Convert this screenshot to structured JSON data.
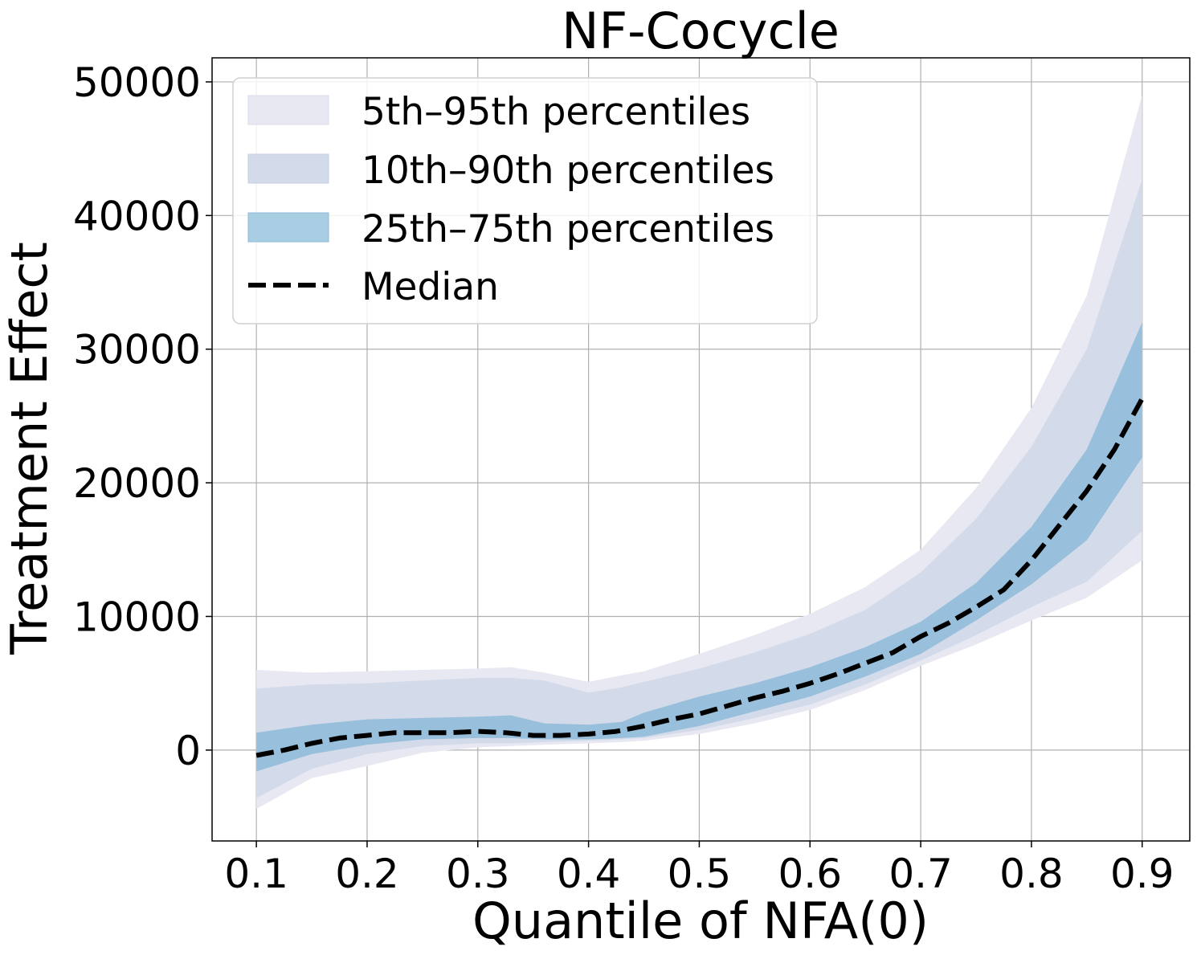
{
  "chart_data": {
    "type": "area",
    "title": "NF-Cocycle",
    "xlabel": "Quantile of NFA(0)",
    "ylabel": "Treatment Effect",
    "xlim": [
      0.06,
      0.943
    ],
    "ylim": [
      -6800,
      51800
    ],
    "xticks": [
      0.1,
      0.2,
      0.3,
      0.4,
      0.5,
      0.6,
      0.7,
      0.8,
      0.9
    ],
    "xtick_labels": [
      "0.1",
      "0.2",
      "0.3",
      "0.4",
      "0.5",
      "0.6",
      "0.7",
      "0.8",
      "0.9"
    ],
    "yticks": [
      0,
      10000,
      20000,
      30000,
      40000,
      50000
    ],
    "ytick_labels": [
      "0",
      "10000",
      "20000",
      "30000",
      "40000",
      "50000"
    ],
    "grid": true,
    "legend_position": "top-left",
    "x": [
      0.1,
      0.15,
      0.2,
      0.25,
      0.3,
      0.33,
      0.36,
      0.4,
      0.43,
      0.45,
      0.5,
      0.55,
      0.6,
      0.65,
      0.7,
      0.75,
      0.8,
      0.85,
      0.9
    ],
    "series": [
      {
        "name": "5th–95th percentiles",
        "color": "#e8e8f2",
        "lower": [
          -4400,
          -2100,
          -1200,
          -200,
          200,
          300,
          400,
          500,
          600,
          700,
          1200,
          2000,
          3000,
          4500,
          6300,
          7900,
          9700,
          11400,
          14200
        ],
        "upper": [
          6000,
          5800,
          5900,
          6000,
          6100,
          6200,
          5800,
          5100,
          5600,
          5900,
          7200,
          8600,
          10200,
          12200,
          15000,
          19600,
          25600,
          34000,
          49000
        ]
      },
      {
        "name": "10th–90th percentiles",
        "color": "#d3dbea",
        "lower": [
          -3600,
          -1400,
          -300,
          300,
          500,
          500,
          600,
          700,
          800,
          900,
          1500,
          2400,
          3400,
          4900,
          6700,
          8600,
          10700,
          12600,
          16400
        ],
        "upper": [
          4600,
          4900,
          5000,
          5200,
          5400,
          5400,
          5200,
          4300,
          4700,
          5100,
          6100,
          7300,
          8700,
          10500,
          13300,
          17300,
          22700,
          30000,
          42700
        ]
      },
      {
        "name": "25th–75th percentiles",
        "color": "#8dbad8",
        "lower": [
          -1600,
          -300,
          400,
          800,
          900,
          900,
          800,
          800,
          900,
          1000,
          1800,
          2900,
          4000,
          5500,
          7200,
          9700,
          12400,
          15700,
          21900
        ],
        "upper": [
          1300,
          1900,
          2300,
          2400,
          2500,
          2600,
          2000,
          1900,
          2100,
          2800,
          4000,
          5000,
          6200,
          7700,
          9600,
          12500,
          16700,
          22500,
          32000
        ]
      }
    ],
    "median": {
      "name": "Median",
      "x": [
        0.1,
        0.125,
        0.15,
        0.175,
        0.2,
        0.225,
        0.25,
        0.275,
        0.3,
        0.325,
        0.35,
        0.375,
        0.4,
        0.425,
        0.45,
        0.475,
        0.5,
        0.525,
        0.55,
        0.575,
        0.6,
        0.625,
        0.65,
        0.675,
        0.7,
        0.725,
        0.75,
        0.775,
        0.8,
        0.825,
        0.85,
        0.875,
        0.9
      ],
      "y": [
        -400,
        0,
        500,
        900,
        1100,
        1300,
        1300,
        1300,
        1400,
        1300,
        1100,
        1100,
        1200,
        1400,
        1800,
        2300,
        2700,
        3300,
        3900,
        4400,
        5000,
        5700,
        6500,
        7300,
        8500,
        9500,
        10700,
        12000,
        14200,
        16800,
        19400,
        22500,
        26300
      ]
    }
  }
}
